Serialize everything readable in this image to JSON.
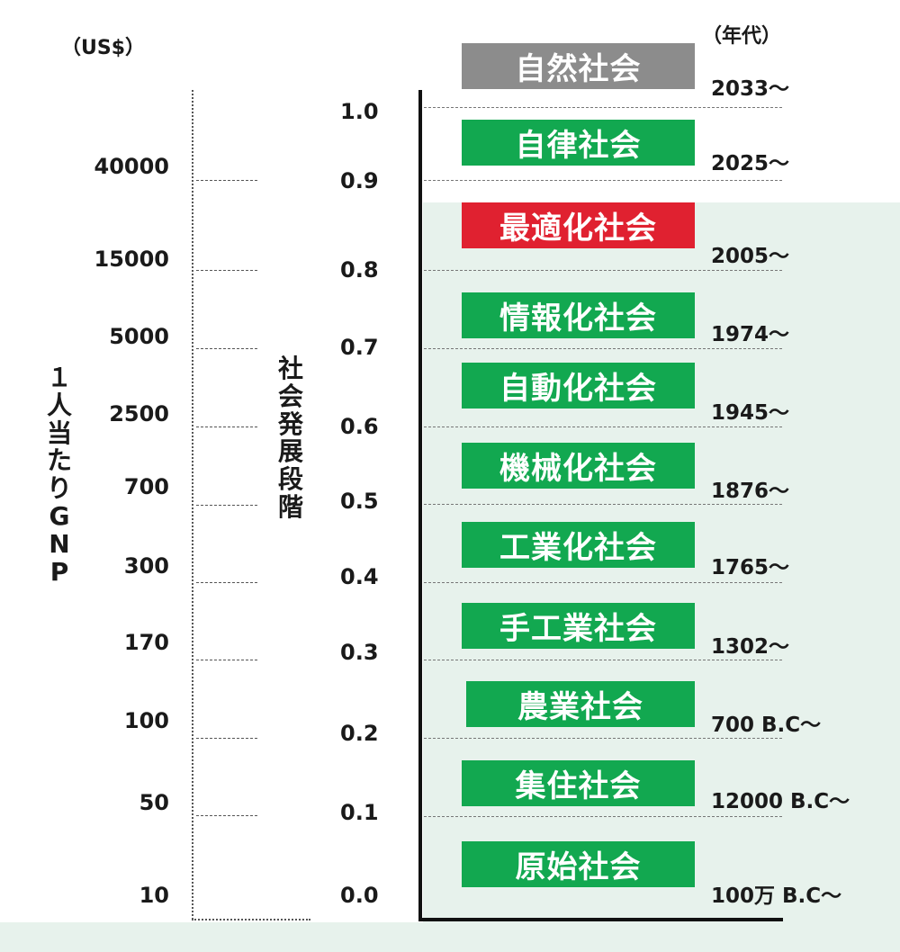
{
  "units": {
    "gnp": "（US$）",
    "era": "（年代）"
  },
  "vertical_labels": {
    "gnp_axis": [
      "１",
      "人",
      "当",
      "た",
      "り",
      "G",
      "N",
      "P"
    ],
    "stage_axis": [
      "社",
      "会",
      "発",
      "展",
      "段",
      "階"
    ]
  },
  "colors": {
    "green": "#12a850",
    "gray": "#8c8c8c",
    "red": "#e02130",
    "bg": "#e7f2ec"
  },
  "chart_data": {
    "type": "table",
    "columns": [
      "社会",
      "社会発展段階",
      "1人当たりGNP (US$)",
      "年代"
    ],
    "gnp_ticks": [
      "10",
      "50",
      "100",
      "170",
      "300",
      "700",
      "2500",
      "5000",
      "15000",
      "40000"
    ],
    "stage_ticks": [
      "0.0",
      "0.1",
      "0.2",
      "0.3",
      "0.4",
      "0.5",
      "0.6",
      "0.7",
      "0.8",
      "0.9",
      "1.0"
    ],
    "societies": [
      {
        "name": "原始社会",
        "era": "100万 B.C～",
        "color": "green"
      },
      {
        "name": "集住社会",
        "era": "12000 B.C～",
        "color": "green"
      },
      {
        "name": "農業社会",
        "era": "700 B.C～",
        "color": "green"
      },
      {
        "name": "手工業社会",
        "era": "1302～",
        "color": "green"
      },
      {
        "name": "工業化社会",
        "era": "1765～",
        "color": "green"
      },
      {
        "name": "機械化社会",
        "era": "1876～",
        "color": "green"
      },
      {
        "name": "自動化社会",
        "era": "1945～",
        "color": "green"
      },
      {
        "name": "情報化社会",
        "era": "1974～",
        "color": "green"
      },
      {
        "name": "最適化社会",
        "era": "2005～",
        "color": "red"
      },
      {
        "name": "自律社会",
        "era": "2025～",
        "color": "green"
      },
      {
        "name": "自然社会",
        "era": "2033～",
        "color": "gray"
      }
    ]
  }
}
